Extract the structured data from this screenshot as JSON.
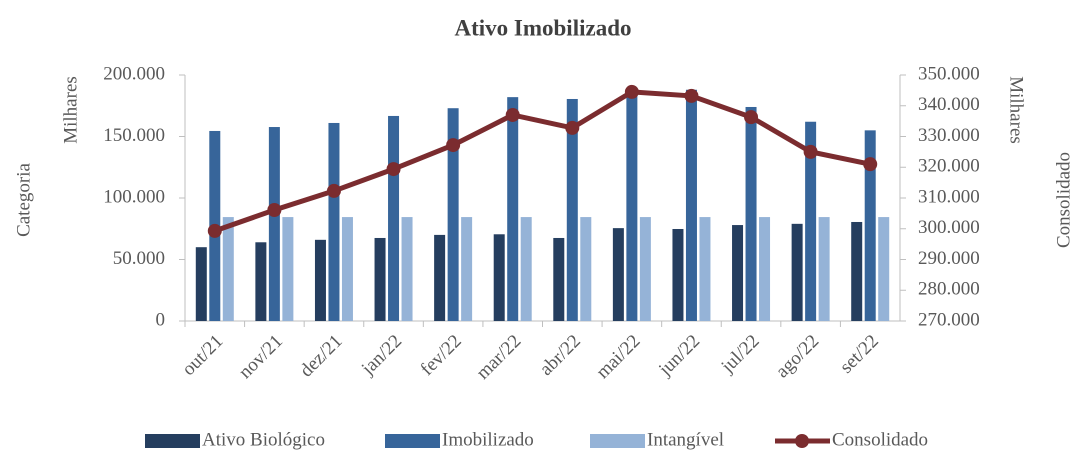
{
  "chart_data": {
    "type": "bar-line",
    "title": "Ativo Imobilizado",
    "categories": [
      "out/21",
      "nov/21",
      "dez/21",
      "jan/22",
      "fev/22",
      "mar/22",
      "abr/22",
      "mai/22",
      "jun/22",
      "jul/22",
      "ago/22",
      "set/22"
    ],
    "series": [
      {
        "name": "Ativo Biológico",
        "type": "bar",
        "color": "#253e5f",
        "values": [
          60000,
          64000,
          66000,
          67500,
          70000,
          70500,
          67500,
          75500,
          74800,
          78000,
          79000,
          80500
        ]
      },
      {
        "name": "Imobilizado",
        "type": "bar",
        "color": "#37659a",
        "values": [
          154500,
          157700,
          161000,
          166700,
          173000,
          182000,
          180500,
          189400,
          188000,
          174000,
          162000,
          155000
        ]
      },
      {
        "name": "Intangível",
        "type": "bar",
        "color": "#95b3d7",
        "values": [
          84500,
          84500,
          84500,
          84500,
          84500,
          84500,
          84500,
          84500,
          84500,
          84500,
          84500,
          84500
        ]
      },
      {
        "name": "Consolidado",
        "type": "line",
        "axis": "y2",
        "color": "#7b2c2f",
        "values": [
          299300,
          306100,
          312300,
          319400,
          327200,
          337000,
          332800,
          344500,
          343200,
          336300,
          325000,
          321000
        ]
      }
    ],
    "xlabel": "Categoria",
    "ylabel": "Milhares",
    "y2label": "Milhares",
    "y2title": "Consolidado",
    "ylim": [
      0,
      200000
    ],
    "yticks": [
      0,
      {
        "value": 50000,
        "label": "50.000"
      },
      {
        "value": 100000,
        "label": "100.000"
      },
      {
        "value": 150000,
        "label": "150.000"
      },
      {
        "value": 200000,
        "label": "200.000"
      }
    ],
    "y2lim": [
      270000,
      350000
    ],
    "y2ticks": [
      {
        "value": 270000,
        "label": "270.000"
      },
      {
        "value": 280000,
        "label": "280.000"
      },
      {
        "value": 290000,
        "label": "290.000"
      },
      {
        "value": 300000,
        "label": "300.000"
      },
      {
        "value": 310000,
        "label": "310.000"
      },
      {
        "value": 320000,
        "label": "320.000"
      },
      {
        "value": 330000,
        "label": "330.000"
      },
      {
        "value": 340000,
        "label": "340.000"
      },
      {
        "value": 350000,
        "label": "350.000"
      }
    ],
    "legend": "bottom"
  }
}
